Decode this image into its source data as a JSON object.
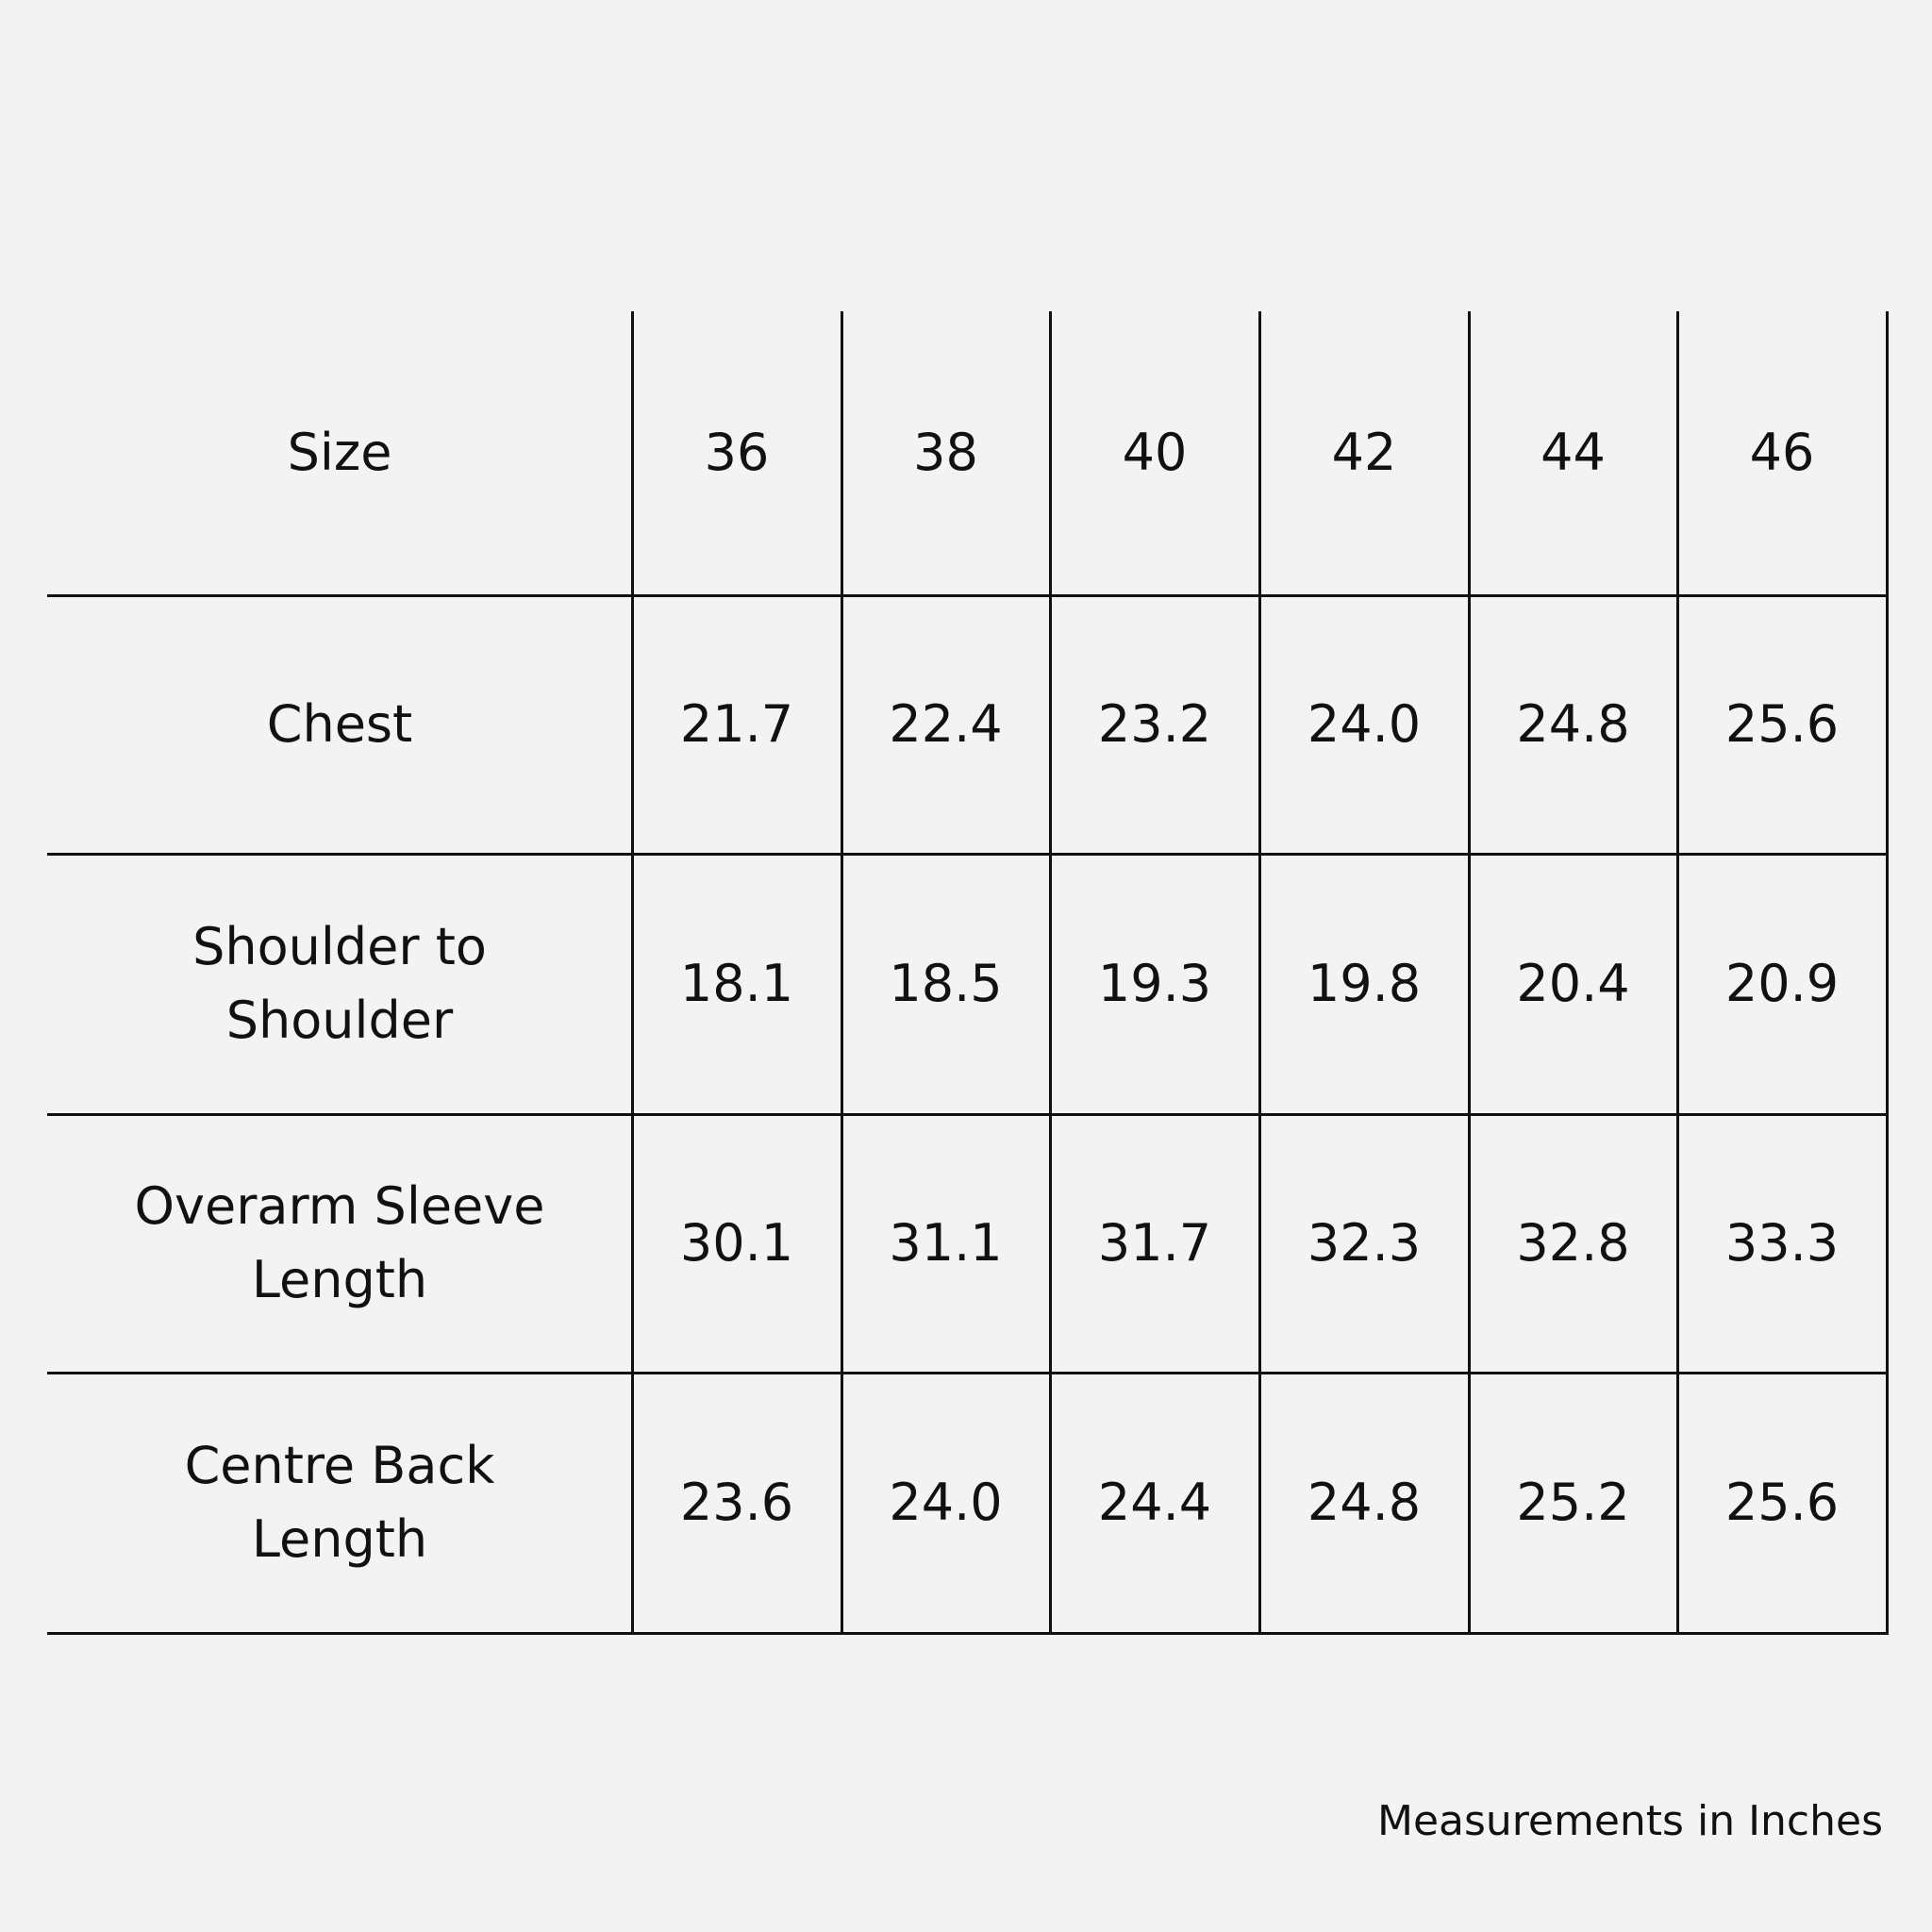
{
  "table": {
    "header": [
      "Size",
      "36",
      "38",
      "40",
      "42",
      "44",
      "46"
    ],
    "rows": [
      [
        "Chest",
        "21.7",
        "22.4",
        "23.2",
        "24.0",
        "24.8",
        "25.6"
      ],
      [
        "Shoulder to Shoulder",
        "18.1",
        "18.5",
        "19.3",
        "19.8",
        "20.4",
        "20.9"
      ],
      [
        "Overarm Sleeve Length",
        "30.1",
        "31.1",
        "31.7",
        "32.3",
        "32.8",
        "33.3"
      ],
      [
        "Centre Back Length",
        "23.6",
        "24.0",
        "24.4",
        "24.8",
        "25.2",
        "25.6"
      ]
    ]
  },
  "note": "Measurements in Inches"
}
